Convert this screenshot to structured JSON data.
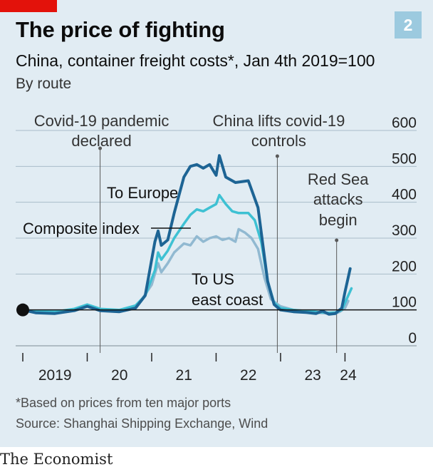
{
  "header": {
    "title": "The price of fighting",
    "number": "2",
    "subtitle": "China, container freight costs*, Jan 4th 2019=100",
    "subtitle2": "By route"
  },
  "footer": {
    "footnote": "*Based on prices from ten major ports",
    "source": "Source: Shanghai Shipping Exchange, Wind",
    "brand": "The Economist"
  },
  "colors": {
    "background": "#e1ecf3",
    "grid": "#a9bdc8",
    "to_europe": "#1d6494",
    "composite": "#3ec1d3",
    "to_us_east_coast": "#91b9d1",
    "annotation": "#595959",
    "brand_red": "#e3120b"
  },
  "chart_data": {
    "type": "line",
    "ylim": [
      0,
      600
    ],
    "xlim": [
      2019.0,
      2024.15
    ],
    "y_ticks": [
      {
        "value": 0,
        "label": "0"
      },
      {
        "value": 100,
        "label": "100"
      },
      {
        "value": 200,
        "label": "200"
      },
      {
        "value": 300,
        "label": "300"
      },
      {
        "value": 400,
        "label": "400"
      },
      {
        "value": 500,
        "label": "500"
      },
      {
        "value": 600,
        "label": "600"
      }
    ],
    "x_ticks": [
      {
        "value": 2019.5,
        "label": "2019"
      },
      {
        "value": 2020.5,
        "label": "20"
      },
      {
        "value": 2021.5,
        "label": "21"
      },
      {
        "value": 2022.5,
        "label": "22"
      },
      {
        "value": 2023.5,
        "label": "23"
      },
      {
        "value": 2024.05,
        "label": "24"
      }
    ],
    "series": [
      {
        "name": "To US east coast",
        "color_key": "to_us_east_coast",
        "points": [
          [
            2019.0,
            100
          ],
          [
            2019.2,
            95
          ],
          [
            2019.5,
            92
          ],
          [
            2019.8,
            100
          ],
          [
            2020.0,
            110
          ],
          [
            2020.2,
            100
          ],
          [
            2020.5,
            98
          ],
          [
            2020.75,
            110
          ],
          [
            2020.85,
            130
          ],
          [
            2021.0,
            170
          ],
          [
            2021.1,
            230
          ],
          [
            2021.15,
            205
          ],
          [
            2021.25,
            230
          ],
          [
            2021.35,
            260
          ],
          [
            2021.5,
            285
          ],
          [
            2021.6,
            280
          ],
          [
            2021.7,
            305
          ],
          [
            2021.8,
            290
          ],
          [
            2021.9,
            300
          ],
          [
            2022.0,
            305
          ],
          [
            2022.1,
            295
          ],
          [
            2022.2,
            300
          ],
          [
            2022.3,
            290
          ],
          [
            2022.35,
            325
          ],
          [
            2022.45,
            315
          ],
          [
            2022.55,
            300
          ],
          [
            2022.65,
            270
          ],
          [
            2022.75,
            190
          ],
          [
            2022.85,
            130
          ],
          [
            2023.0,
            110
          ],
          [
            2023.2,
            100
          ],
          [
            2023.4,
            95
          ],
          [
            2023.6,
            92
          ],
          [
            2023.75,
            90
          ],
          [
            2023.85,
            90
          ],
          [
            2023.92,
            95
          ],
          [
            2024.0,
            105
          ],
          [
            2024.05,
            125
          ]
        ]
      },
      {
        "name": "Composite index",
        "color_key": "composite",
        "points": [
          [
            2019.0,
            100
          ],
          [
            2019.2,
            97
          ],
          [
            2019.5,
            95
          ],
          [
            2019.8,
            103
          ],
          [
            2020.0,
            115
          ],
          [
            2020.2,
            103
          ],
          [
            2020.5,
            100
          ],
          [
            2020.75,
            112
          ],
          [
            2020.9,
            140
          ],
          [
            2021.05,
            210
          ],
          [
            2021.1,
            260
          ],
          [
            2021.15,
            240
          ],
          [
            2021.25,
            265
          ],
          [
            2021.35,
            300
          ],
          [
            2021.5,
            340
          ],
          [
            2021.6,
            365
          ],
          [
            2021.7,
            380
          ],
          [
            2021.8,
            375
          ],
          [
            2021.9,
            385
          ],
          [
            2022.0,
            395
          ],
          [
            2022.05,
            420
          ],
          [
            2022.15,
            395
          ],
          [
            2022.25,
            375
          ],
          [
            2022.35,
            370
          ],
          [
            2022.5,
            370
          ],
          [
            2022.6,
            350
          ],
          [
            2022.7,
            290
          ],
          [
            2022.8,
            180
          ],
          [
            2022.9,
            120
          ],
          [
            2023.0,
            105
          ],
          [
            2023.2,
            100
          ],
          [
            2023.4,
            97
          ],
          [
            2023.6,
            94
          ],
          [
            2023.75,
            92
          ],
          [
            2023.85,
            93
          ],
          [
            2023.95,
            100
          ],
          [
            2024.05,
            140
          ],
          [
            2024.1,
            160
          ]
        ]
      },
      {
        "name": "To Europe",
        "color_key": "to_europe",
        "points": [
          [
            2019.0,
            100
          ],
          [
            2019.2,
            92
          ],
          [
            2019.5,
            90
          ],
          [
            2019.8,
            98
          ],
          [
            2020.0,
            110
          ],
          [
            2020.2,
            98
          ],
          [
            2020.5,
            95
          ],
          [
            2020.75,
            105
          ],
          [
            2020.9,
            140
          ],
          [
            2021.05,
            290
          ],
          [
            2021.1,
            320
          ],
          [
            2021.15,
            280
          ],
          [
            2021.25,
            295
          ],
          [
            2021.35,
            370
          ],
          [
            2021.5,
            470
          ],
          [
            2021.6,
            500
          ],
          [
            2021.7,
            505
          ],
          [
            2021.8,
            495
          ],
          [
            2021.9,
            505
          ],
          [
            2022.0,
            475
          ],
          [
            2022.05,
            530
          ],
          [
            2022.15,
            470
          ],
          [
            2022.3,
            455
          ],
          [
            2022.5,
            460
          ],
          [
            2022.65,
            385
          ],
          [
            2022.8,
            180
          ],
          [
            2022.9,
            115
          ],
          [
            2023.0,
            100
          ],
          [
            2023.2,
            95
          ],
          [
            2023.4,
            93
          ],
          [
            2023.55,
            90
          ],
          [
            2023.65,
            97
          ],
          [
            2023.75,
            88
          ],
          [
            2023.85,
            90
          ],
          [
            2023.95,
            105
          ],
          [
            2024.0,
            150
          ],
          [
            2024.08,
            215
          ]
        ]
      }
    ],
    "series_labels": [
      {
        "series": "To Europe",
        "lines": [
          "To Europe"
        ]
      },
      {
        "series": "Composite index",
        "lines": [
          "Composite index"
        ]
      },
      {
        "series": "To US east coast",
        "lines": [
          "To US",
          "east coast"
        ]
      }
    ],
    "annotations": [
      {
        "x": 2020.2,
        "lines": [
          "Covid-19 pandemic",
          "declared"
        ]
      },
      {
        "x": 2022.95,
        "lines": [
          "China lifts covid-19",
          "controls"
        ]
      },
      {
        "x": 2023.87,
        "lines": [
          "Red Sea",
          "attacks",
          "begin"
        ]
      }
    ],
    "baseline": 100
  }
}
